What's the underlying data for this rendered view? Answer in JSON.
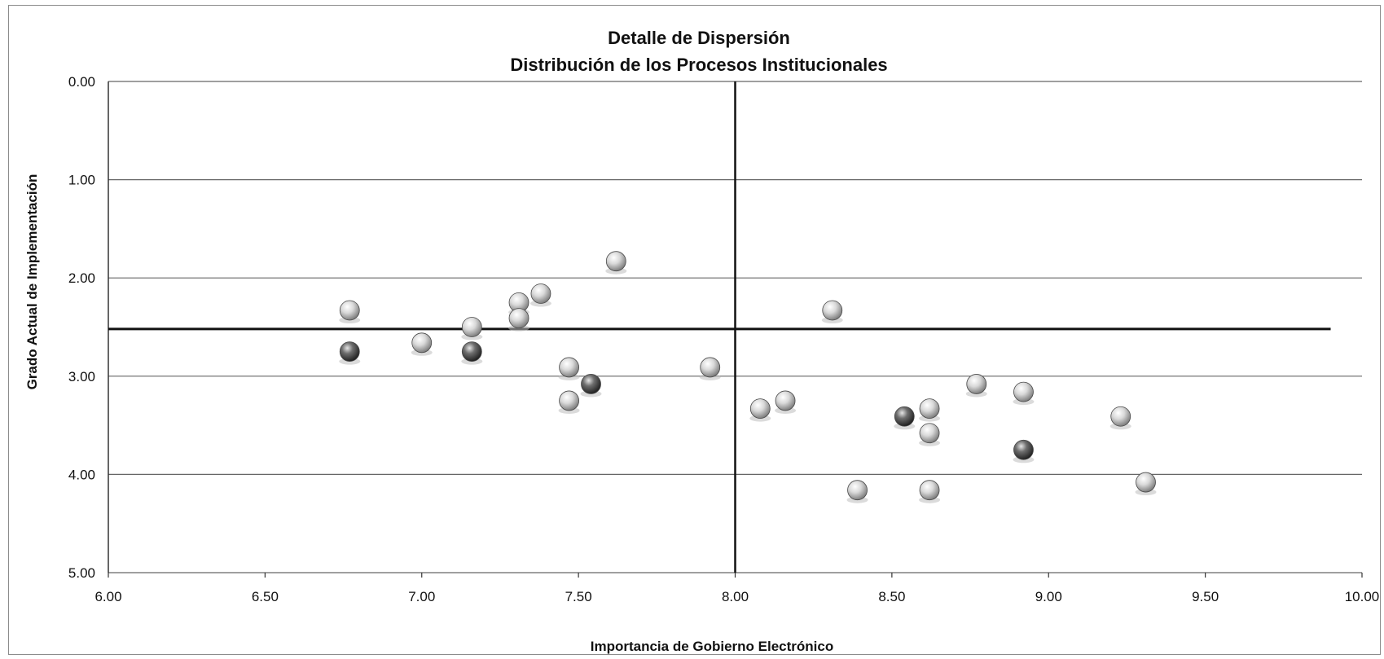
{
  "chart_data": {
    "type": "scatter",
    "title": "Detalle de Dispersión",
    "subtitle": "Distribución de los Procesos Institucionales",
    "xlabel": "Importancia de Gobierno Electrónico",
    "ylabel": "Grado Actual de Implementación",
    "xlim": [
      6.0,
      10.0
    ],
    "ylim": [
      0.0,
      5.0
    ],
    "y_axis_reversed": true,
    "x_ticks": [
      "6.00",
      "6.50",
      "7.00",
      "7.50",
      "8.00",
      "8.50",
      "9.00",
      "9.50",
      "10.00"
    ],
    "y_ticks": [
      "0.00",
      "1.00",
      "2.00",
      "3.00",
      "4.00",
      "5.00"
    ],
    "grid": "horizontal",
    "legend": "none",
    "reference_lines": {
      "vertical_x": 8.0,
      "horizontal_y": 2.52
    },
    "colors": {
      "light_marker": "#d9d9d9",
      "dark_marker": "#6e6e6e",
      "gridline": "#666666",
      "reference_line": "#111111"
    },
    "points": [
      {
        "x": 6.77,
        "y": 2.33,
        "shade": "light"
      },
      {
        "x": 6.77,
        "y": 2.75,
        "shade": "dark"
      },
      {
        "x": 7.0,
        "y": 2.66,
        "shade": "light"
      },
      {
        "x": 7.16,
        "y": 2.5,
        "shade": "light"
      },
      {
        "x": 7.16,
        "y": 2.75,
        "shade": "dark"
      },
      {
        "x": 7.31,
        "y": 2.25,
        "shade": "light"
      },
      {
        "x": 7.31,
        "y": 2.41,
        "shade": "light"
      },
      {
        "x": 7.38,
        "y": 2.16,
        "shade": "light"
      },
      {
        "x": 7.47,
        "y": 2.91,
        "shade": "light"
      },
      {
        "x": 7.47,
        "y": 3.25,
        "shade": "light"
      },
      {
        "x": 7.54,
        "y": 3.08,
        "shade": "dark"
      },
      {
        "x": 7.62,
        "y": 1.83,
        "shade": "light"
      },
      {
        "x": 7.92,
        "y": 2.91,
        "shade": "light"
      },
      {
        "x": 8.08,
        "y": 3.33,
        "shade": "light"
      },
      {
        "x": 8.16,
        "y": 3.25,
        "shade": "light"
      },
      {
        "x": 8.31,
        "y": 2.33,
        "shade": "light"
      },
      {
        "x": 8.39,
        "y": 4.16,
        "shade": "light"
      },
      {
        "x": 8.54,
        "y": 3.41,
        "shade": "dark"
      },
      {
        "x": 8.62,
        "y": 3.33,
        "shade": "light"
      },
      {
        "x": 8.62,
        "y": 3.58,
        "shade": "light"
      },
      {
        "x": 8.62,
        "y": 4.16,
        "shade": "light"
      },
      {
        "x": 8.77,
        "y": 3.08,
        "shade": "light"
      },
      {
        "x": 8.92,
        "y": 3.16,
        "shade": "light"
      },
      {
        "x": 8.92,
        "y": 3.75,
        "shade": "dark"
      },
      {
        "x": 9.23,
        "y": 3.41,
        "shade": "light"
      },
      {
        "x": 9.31,
        "y": 4.08,
        "shade": "light"
      }
    ]
  }
}
